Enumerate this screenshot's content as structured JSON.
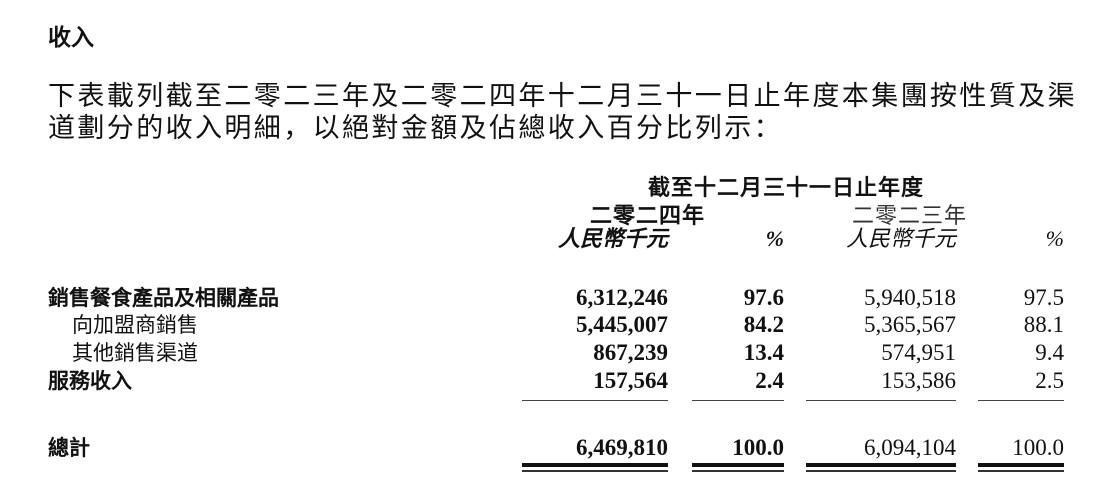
{
  "heading": "收入",
  "paragraph": [
    "下表載列截至二零二三年及二零二四年十二月三十一日止年度本集團按性質及渠",
    "道劃分的收入明細，以絕對金額及佔總收入百分比列示："
  ],
  "table": {
    "period_header": "截至十二月三十一日止年度",
    "years": [
      "二零二四年",
      "二零二三年"
    ],
    "columns": [
      "人民幣千元",
      "%",
      "人民幣千元",
      "%"
    ],
    "rows": [
      {
        "label": "銷售餐食產品及相關產品",
        "bold": true,
        "values": [
          "6,312,246",
          "97.6",
          "5,940,518",
          "97.5"
        ]
      },
      {
        "label": "向加盟商銷售",
        "bold": false,
        "values": [
          "5,445,007",
          "84.2",
          "5,365,567",
          "88.1"
        ]
      },
      {
        "label": "其他銷售渠道",
        "bold": false,
        "values": [
          "867,239",
          "13.4",
          "574,951",
          "9.4"
        ]
      },
      {
        "label": "服務收入",
        "bold": true,
        "values": [
          "157,564",
          "2.4",
          "153,586",
          "2.5"
        ]
      }
    ],
    "total": {
      "label": "總計",
      "values": [
        "6,469,810",
        "100.0",
        "6,094,104",
        "100.0"
      ]
    }
  }
}
